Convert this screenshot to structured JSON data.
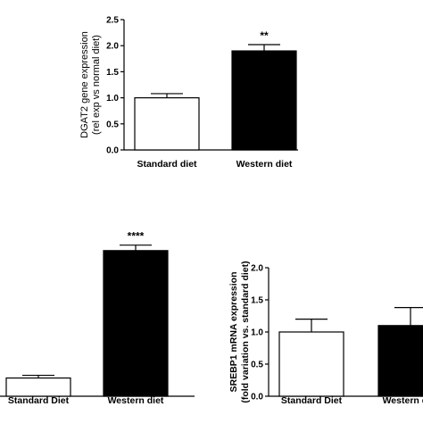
{
  "chart_data": [
    {
      "type": "bar",
      "categories": [
        "Standard diet",
        "Western diet"
      ],
      "values": [
        1.0,
        1.9
      ],
      "errors": [
        0.08,
        0.12
      ],
      "bar_fills": [
        "#ffffff",
        "#000000"
      ],
      "annotations": [
        "",
        "**"
      ],
      "ylabel_lines": [
        "DGAT2 gene expression",
        "(rel exp vs normal diet)"
      ],
      "ylim": [
        0,
        2.5
      ],
      "yticks": [
        "0.0",
        "0.5",
        "1.0",
        "1.5",
        "2.0",
        "2.5"
      ],
      "grid": false
    },
    {
      "type": "bar",
      "categories": [
        "Standard Diet",
        "Western diet"
      ],
      "values": [
        0.2,
        1.6
      ],
      "errors": [
        0.03,
        0.06
      ],
      "bar_fills": [
        "#ffffff",
        "#000000"
      ],
      "annotations": [
        "",
        "****"
      ],
      "ylim": [
        0,
        2.0
      ],
      "grid": false
    },
    {
      "type": "bar",
      "categories": [
        "Standard Diet",
        "Western diet"
      ],
      "values": [
        1.0,
        1.1
      ],
      "errors": [
        0.2,
        0.28
      ],
      "bar_fills": [
        "#ffffff",
        "#000000"
      ],
      "annotations": [
        "",
        ""
      ],
      "ylabel_lines": [
        "SREBP1 mRNA expression",
        "(fold variation vs. standard diet)"
      ],
      "ylim": [
        0,
        2.0
      ],
      "yticks": [
        "0.0",
        "0.5",
        "1.0",
        "1.5",
        "2.0"
      ],
      "grid": false
    }
  ]
}
